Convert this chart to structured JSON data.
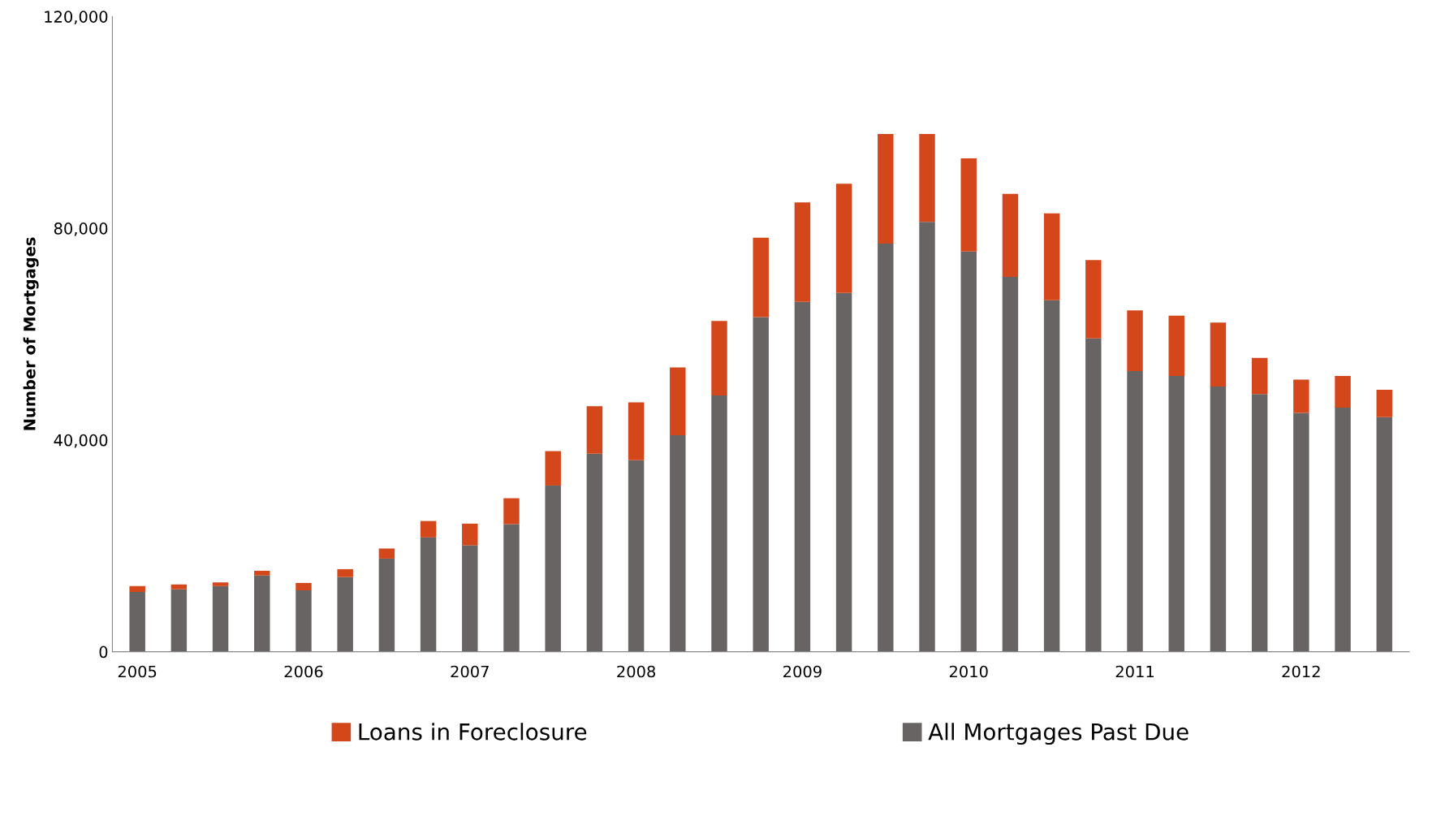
{
  "chart_data": {
    "type": "bar",
    "stacked": true,
    "ylabel": "Number of Mortgages",
    "categories": [
      "2005",
      null,
      null,
      null,
      "2006",
      null,
      null,
      null,
      "2007",
      null,
      null,
      null,
      "2008",
      null,
      null,
      null,
      "2009",
      null,
      null,
      null,
      "2010",
      null,
      null,
      null,
      "2011",
      null,
      null,
      null,
      "2012",
      null,
      null
    ],
    "series": [
      {
        "name": "All Mortgages Past Due",
        "color": "#686464",
        "values": [
          11300,
          11800,
          12400,
          14400,
          11600,
          14100,
          17600,
          21600,
          20100,
          24100,
          31400,
          37400,
          36200,
          40900,
          48400,
          63200,
          66100,
          67800,
          77100,
          81200,
          75600,
          70800,
          66400,
          59200,
          53000,
          52100,
          50100,
          48700,
          45100,
          46100,
          44300
        ]
      },
      {
        "name": "Loans in Foreclosure",
        "color": "#d4471a",
        "values": [
          1100,
          900,
          700,
          900,
          1400,
          1500,
          1900,
          3100,
          4100,
          4900,
          6500,
          9000,
          10900,
          12800,
          14100,
          15000,
          18800,
          20600,
          20700,
          16600,
          17600,
          15700,
          16400,
          14800,
          11500,
          11400,
          12100,
          6800,
          6300,
          6000,
          5200
        ]
      }
    ],
    "ylim": [
      0,
      120000
    ],
    "yticks": [
      0,
      {
        "value": 40000,
        "label": "40,000"
      },
      {
        "value": 80000,
        "label": "80,000"
      },
      {
        "value": 120000,
        "label": "120,000"
      }
    ],
    "grid": false,
    "legend": "bottom"
  }
}
